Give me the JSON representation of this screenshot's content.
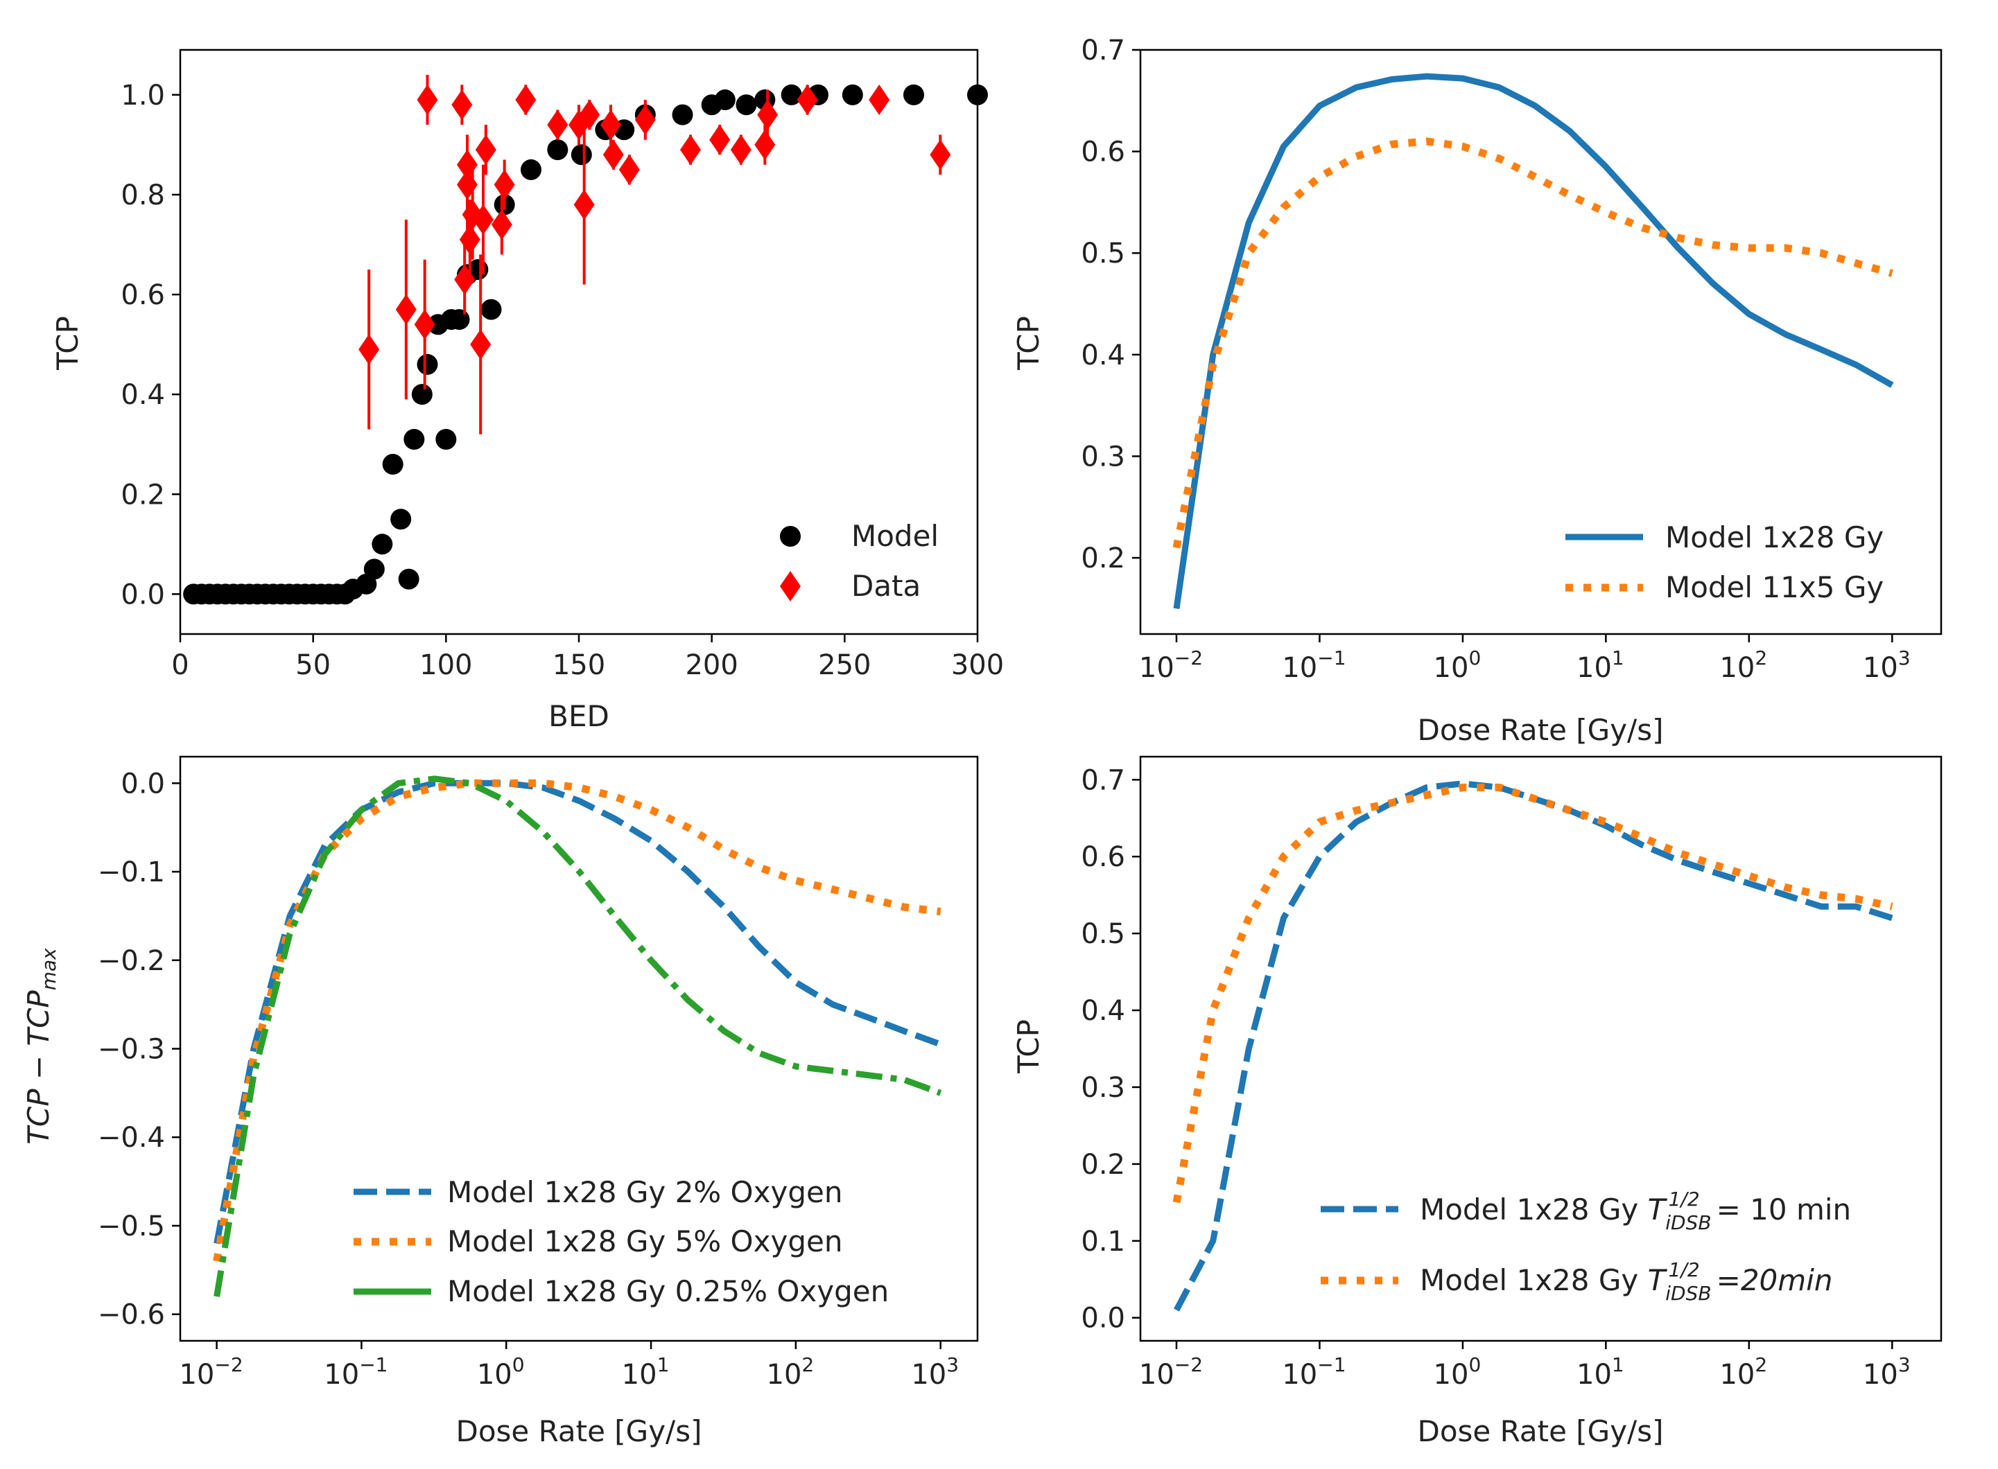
{
  "chart_data": [
    {
      "type": "scatter",
      "xscale": "linear",
      "xlabel": "BED",
      "ylabel": "TCP",
      "xlim": [
        0,
        300
      ],
      "ylim": [
        -0.08,
        1.09
      ],
      "xticks": [
        0,
        50,
        100,
        150,
        200,
        250,
        300
      ],
      "xtick_labels": [
        "0",
        "50",
        "100",
        "150",
        "200",
        "250",
        "300"
      ],
      "yticks": [
        0.0,
        0.2,
        0.4,
        0.6,
        0.8,
        1.0
      ],
      "ytick_labels": [
        "0.0",
        "0.2",
        "0.4",
        "0.6",
        "0.8",
        "1.0"
      ],
      "legend_position": "lower-right",
      "series": [
        {
          "name": "Model",
          "color": "#000000",
          "marker": "circle",
          "x": [
            5,
            8,
            11,
            14,
            17,
            20,
            23,
            26,
            29,
            32,
            35,
            38,
            41,
            44,
            47,
            50,
            53,
            56,
            59,
            62,
            65,
            70,
            73,
            76,
            80,
            83,
            86,
            88,
            91,
            93,
            97,
            100,
            102,
            105,
            108,
            112,
            117,
            122,
            132,
            142,
            151,
            160,
            167,
            175,
            189,
            200,
            205,
            213,
            220,
            230,
            240,
            253,
            276,
            300
          ],
          "y": [
            0,
            0,
            0,
            0,
            0,
            0,
            0,
            0,
            0,
            0,
            0,
            0,
            0,
            0,
            0,
            0,
            0,
            0,
            0,
            0,
            0.01,
            0.02,
            0.05,
            0.1,
            0.26,
            0.15,
            0.03,
            0.31,
            0.4,
            0.46,
            0.54,
            0.31,
            0.55,
            0.55,
            0.64,
            0.65,
            0.57,
            0.78,
            0.85,
            0.89,
            0.88,
            0.93,
            0.93,
            0.96,
            0.96,
            0.98,
            0.99,
            0.98,
            0.99,
            1.0,
            1.0,
            1.0,
            1.0,
            1.0
          ]
        },
        {
          "name": "Data",
          "color": "#ff0000",
          "marker": "diamond",
          "x": [
            71,
            85,
            92,
            93,
            106,
            107,
            108,
            108,
            109,
            110,
            113,
            114,
            115,
            121,
            122,
            130,
            142,
            150,
            152,
            154,
            162,
            163,
            169,
            175,
            192,
            203,
            211,
            220,
            221,
            236,
            263,
            286
          ],
          "y": [
            0.49,
            0.57,
            0.54,
            0.99,
            0.98,
            0.63,
            0.82,
            0.86,
            0.71,
            0.76,
            0.5,
            0.75,
            0.89,
            0.74,
            0.82,
            0.99,
            0.94,
            0.94,
            0.78,
            0.96,
            0.94,
            0.88,
            0.85,
            0.95,
            0.89,
            0.91,
            0.89,
            0.9,
            0.96,
            0.99,
            0.99,
            0.88
          ],
          "err": [
            0.16,
            0.18,
            0.13,
            0.05,
            0.04,
            0.07,
            0.09,
            0.06,
            0.08,
            0.09,
            0.18,
            0.11,
            0.05,
            0.06,
            0.05,
            0.03,
            0.03,
            0.04,
            0.16,
            0.03,
            0.04,
            0.03,
            0.03,
            0.04,
            0.03,
            0.03,
            0.03,
            0.04,
            0.05,
            0.03,
            0.02,
            0.04
          ]
        }
      ]
    },
    {
      "type": "line",
      "xscale": "log",
      "xlabel": "Dose Rate [Gy/s]",
      "ylabel": "TCP",
      "xlim": [
        0.0056,
        2200
      ],
      "ylim": [
        0.125,
        0.7
      ],
      "xticks": [
        0.01,
        0.1,
        1,
        10,
        100,
        1000
      ],
      "xtick_bases": [
        "10",
        "10",
        "10",
        "10",
        "10",
        "10"
      ],
      "xtick_exps": [
        "−2",
        "−1",
        "0",
        "1",
        "2",
        "3"
      ],
      "yticks": [
        0.2,
        0.3,
        0.4,
        0.5,
        0.6,
        0.7
      ],
      "ytick_labels": [
        "0.2",
        "0.3",
        "0.4",
        "0.5",
        "0.6",
        "0.7"
      ],
      "legend_position": "lower-right",
      "series": [
        {
          "name": "Model 1x28 Gy",
          "color": "#1f77b4",
          "style": "solid",
          "x": [
            0.01,
            0.018,
            0.032,
            0.056,
            0.1,
            0.18,
            0.32,
            0.56,
            1,
            1.8,
            3.2,
            5.6,
            10,
            18,
            32,
            56,
            100,
            180,
            320,
            560,
            1000
          ],
          "y": [
            0.15,
            0.4,
            0.53,
            0.605,
            0.645,
            0.663,
            0.671,
            0.674,
            0.672,
            0.663,
            0.645,
            0.62,
            0.585,
            0.545,
            0.505,
            0.47,
            0.44,
            0.42,
            0.405,
            0.39,
            0.37
          ]
        },
        {
          "name": "Model 11x5 Gy",
          "color": "#ff7f0e",
          "style": "dotted",
          "x": [
            0.01,
            0.018,
            0.032,
            0.056,
            0.1,
            0.18,
            0.32,
            0.56,
            1,
            1.8,
            3.2,
            5.6,
            10,
            18,
            32,
            56,
            100,
            180,
            320,
            560,
            1000
          ],
          "y": [
            0.21,
            0.39,
            0.5,
            0.545,
            0.575,
            0.595,
            0.607,
            0.61,
            0.605,
            0.593,
            0.575,
            0.557,
            0.54,
            0.525,
            0.515,
            0.508,
            0.505,
            0.505,
            0.5,
            0.49,
            0.48
          ]
        }
      ]
    },
    {
      "type": "line",
      "xscale": "log",
      "xlabel": "Dose Rate [Gy/s]",
      "ylabel": "TCP − TCP",
      "ylabel_sub": "max",
      "xlim": [
        0.0056,
        1800
      ],
      "ylim": [
        -0.63,
        0.03
      ],
      "xticks": [
        0.01,
        0.1,
        1,
        10,
        100,
        1000
      ],
      "xtick_bases": [
        "10",
        "10",
        "10",
        "10",
        "10",
        "10"
      ],
      "xtick_exps": [
        "−2",
        "−1",
        "0",
        "1",
        "2",
        "3"
      ],
      "yticks": [
        0.0,
        -0.1,
        -0.2,
        -0.3,
        -0.4,
        -0.5,
        -0.6
      ],
      "ytick_labels": [
        "0.0",
        "−0.1",
        "−0.2",
        "−0.3",
        "−0.4",
        "−0.5",
        "−0.6"
      ],
      "legend_position": "lower-right",
      "series": [
        {
          "name": "Model 1x28 Gy 2% Oxygen",
          "color": "#1f77b4",
          "style": "dashed",
          "x": [
            0.01,
            0.018,
            0.032,
            0.056,
            0.1,
            0.18,
            0.32,
            0.56,
            1,
            1.8,
            3.2,
            5.6,
            10,
            18,
            32,
            56,
            100,
            180,
            320,
            560,
            1000
          ],
          "y": [
            -0.52,
            -0.3,
            -0.15,
            -0.07,
            -0.03,
            -0.01,
            0,
            0,
            0,
            -0.005,
            -0.02,
            -0.04,
            -0.065,
            -0.1,
            -0.14,
            -0.185,
            -0.225,
            -0.25,
            -0.265,
            -0.28,
            -0.295
          ]
        },
        {
          "name": "Model 1x28 Gy 5% Oxygen",
          "color": "#ff7f0e",
          "style": "dotted",
          "x": [
            0.01,
            0.018,
            0.032,
            0.056,
            0.1,
            0.18,
            0.32,
            0.56,
            1,
            1.8,
            3.2,
            5.6,
            10,
            18,
            32,
            56,
            100,
            180,
            320,
            560,
            1000
          ],
          "y": [
            -0.54,
            -0.31,
            -0.16,
            -0.08,
            -0.04,
            -0.015,
            -0.005,
            0,
            0,
            0,
            -0.005,
            -0.015,
            -0.03,
            -0.05,
            -0.075,
            -0.095,
            -0.11,
            -0.12,
            -0.13,
            -0.14,
            -0.145
          ]
        },
        {
          "name": "Model 1x28 Gy 0.25% Oxygen",
          "color": "#2ca02c",
          "style": "dashdot",
          "x": [
            0.01,
            0.018,
            0.032,
            0.056,
            0.1,
            0.18,
            0.32,
            0.56,
            1,
            1.8,
            3.2,
            5.6,
            10,
            18,
            32,
            56,
            100,
            180,
            320,
            560,
            1000
          ],
          "y": [
            -0.58,
            -0.33,
            -0.17,
            -0.08,
            -0.03,
            0,
            0.005,
            0,
            -0.02,
            -0.055,
            -0.1,
            -0.15,
            -0.2,
            -0.245,
            -0.28,
            -0.305,
            -0.32,
            -0.325,
            -0.33,
            -0.335,
            -0.35
          ]
        }
      ]
    },
    {
      "type": "line",
      "xscale": "log",
      "xlabel": "Dose Rate [Gy/s]",
      "ylabel": "TCP",
      "xlim": [
        0.0056,
        2200
      ],
      "ylim": [
        -0.03,
        0.73
      ],
      "xticks": [
        0.01,
        0.1,
        1,
        10,
        100,
        1000
      ],
      "xtick_bases": [
        "10",
        "10",
        "10",
        "10",
        "10",
        "10"
      ],
      "xtick_exps": [
        "−2",
        "−1",
        "0",
        "1",
        "2",
        "3"
      ],
      "yticks": [
        0.0,
        0.1,
        0.2,
        0.3,
        0.4,
        0.5,
        0.6,
        0.7
      ],
      "ytick_labels": [
        "0.0",
        "0.1",
        "0.2",
        "0.3",
        "0.4",
        "0.5",
        "0.6",
        "0.7"
      ],
      "legend_position": "lower-right",
      "series": [
        {
          "name": "Model 1x28 Gy",
          "legend_suffix": "= 10 min",
          "color": "#1f77b4",
          "style": "dashed",
          "x": [
            0.01,
            0.018,
            0.032,
            0.056,
            0.1,
            0.18,
            0.32,
            0.56,
            1,
            1.8,
            3.2,
            5.6,
            10,
            18,
            32,
            56,
            100,
            180,
            320,
            560,
            1000
          ],
          "y": [
            0.01,
            0.1,
            0.35,
            0.52,
            0.6,
            0.645,
            0.67,
            0.69,
            0.695,
            0.69,
            0.675,
            0.66,
            0.64,
            0.615,
            0.595,
            0.58,
            0.565,
            0.55,
            0.535,
            0.535,
            0.52
          ]
        },
        {
          "name": "Model 1x28 Gy",
          "legend_suffix": "=20min",
          "color": "#ff7f0e",
          "style": "dotted",
          "x": [
            0.01,
            0.018,
            0.032,
            0.056,
            0.1,
            0.18,
            0.32,
            0.56,
            1,
            1.8,
            3.2,
            5.6,
            10,
            18,
            32,
            56,
            100,
            180,
            320,
            560,
            1000
          ],
          "y": [
            0.15,
            0.4,
            0.52,
            0.6,
            0.645,
            0.66,
            0.67,
            0.68,
            0.69,
            0.69,
            0.675,
            0.66,
            0.645,
            0.625,
            0.605,
            0.59,
            0.575,
            0.56,
            0.55,
            0.545,
            0.535
          ]
        }
      ]
    }
  ]
}
